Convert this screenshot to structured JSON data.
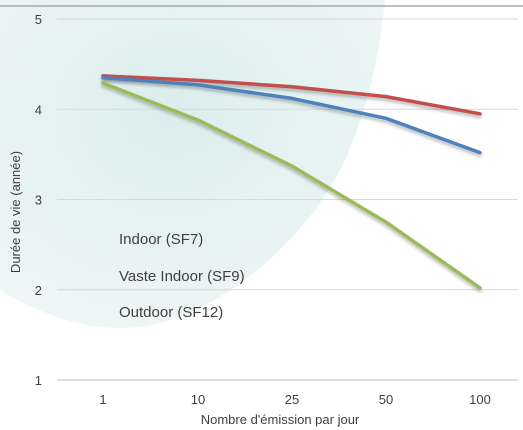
{
  "chart_data": {
    "type": "line",
    "title": "",
    "xlabel": "Nombre d'émission par jour",
    "ylabel": "Durée de vie (année)",
    "categories": [
      "1",
      "10",
      "25",
      "50",
      "100"
    ],
    "ylim": [
      1,
      5
    ],
    "yticks": [
      1,
      2,
      3,
      4,
      5
    ],
    "grid": true,
    "legend_position": "left",
    "series": [
      {
        "name": "Indoor (SF7)",
        "color": "#c0504d",
        "values": [
          4.37,
          4.32,
          4.25,
          4.14,
          3.95
        ]
      },
      {
        "name": "Vaste Indoor (SF9)",
        "color": "#4f81bd",
        "values": [
          4.35,
          4.27,
          4.12,
          3.9,
          3.52
        ]
      },
      {
        "name": "Outdoor (SF12)",
        "color": "#9bbb59",
        "values": [
          4.29,
          3.88,
          3.37,
          2.75,
          2.02
        ]
      }
    ]
  }
}
